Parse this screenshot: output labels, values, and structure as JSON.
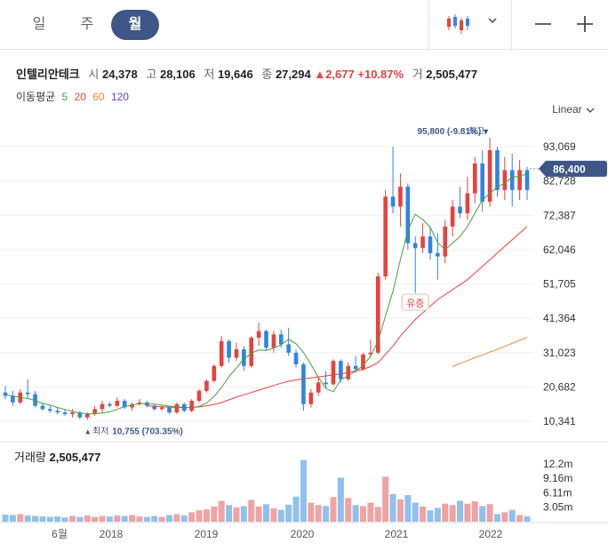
{
  "tabs": [
    {
      "label": "일",
      "active": false
    },
    {
      "label": "주",
      "active": false
    },
    {
      "label": "월",
      "active": true
    }
  ],
  "toolbar": {
    "candle_icon": "candlestick-icon",
    "dropdown_icon": "chevron-down-icon",
    "zoom_out_icon": "minus-icon",
    "zoom_in_icon": "plus-icon"
  },
  "stock": {
    "name": "인텔리안테크",
    "open_label": "시",
    "open": "24,378",
    "high_label": "고",
    "high": "28,106",
    "low_label": "저",
    "low": "19,646",
    "close_label": "종",
    "close": "27,294",
    "change": "2,677",
    "change_pct": "+10.87%",
    "volume_label": "거",
    "volume": "2,505,477"
  },
  "moving_avg": {
    "label": "이동평균",
    "periods": [
      "5",
      "20",
      "60",
      "120"
    ],
    "colors": [
      "#46a33b",
      "#e8413e",
      "#f0883a",
      "#6a45c9"
    ]
  },
  "scale": {
    "label": "Linear",
    "icon": "chevron-down-icon"
  },
  "colors": {
    "up": "#e8413e",
    "down": "#2f84e6",
    "accent": "#3e5687",
    "vol_up": "#f0a3a3",
    "vol_down": "#8fc1ef"
  },
  "chart_data": {
    "type": "candlestick",
    "price_axis": {
      "ticks": [
        "93,069",
        "82,728",
        "72,387",
        "62,046",
        "51,705",
        "41,364",
        "31,023",
        "20,682",
        "10,341"
      ],
      "range": [
        8000,
        100000
      ]
    },
    "current_price": "86,400",
    "high_marker": {
      "label": "최고",
      "value": "95,800 (-9.81%)",
      "raw": 95800
    },
    "low_marker": {
      "label": "최저",
      "value": "10,755 (703.35%)",
      "raw": 10755
    },
    "annotation": "유증",
    "x_labels": [
      "6월",
      "2018",
      "2019",
      "2020",
      "2021",
      "2022"
    ],
    "candles": [
      [
        19000,
        21000,
        17000,
        18000
      ],
      [
        18000,
        19500,
        15000,
        16000
      ],
      [
        16000,
        20000,
        15500,
        19000
      ],
      [
        19000,
        23000,
        17000,
        18500
      ],
      [
        18500,
        19500,
        14500,
        15000
      ],
      [
        15000,
        16000,
        13500,
        14000
      ],
      [
        14000,
        15000,
        13000,
        13500
      ],
      [
        13500,
        14500,
        12500,
        13000
      ],
      [
        13000,
        14000,
        12000,
        12500
      ],
      [
        12500,
        14000,
        11500,
        13000
      ],
      [
        13000,
        13500,
        11000,
        11500
      ],
      [
        11500,
        13000,
        10755,
        12500
      ],
      [
        12500,
        15000,
        12000,
        14000
      ],
      [
        14000,
        16500,
        13000,
        15500
      ],
      [
        15500,
        16000,
        14500,
        15000
      ],
      [
        15000,
        17500,
        14500,
        16500
      ],
      [
        16500,
        17000,
        14000,
        14500
      ],
      [
        14500,
        16000,
        13500,
        15500
      ],
      [
        15500,
        17000,
        15000,
        16000
      ],
      [
        16000,
        16500,
        14500,
        15000
      ],
      [
        15000,
        15500,
        13500,
        14000
      ],
      [
        14000,
        15000,
        13500,
        14500
      ],
      [
        14500,
        15000,
        12500,
        13000
      ],
      [
        13000,
        16000,
        12500,
        15500
      ],
      [
        15500,
        16000,
        13000,
        13500
      ],
      [
        13500,
        17000,
        13000,
        16500
      ],
      [
        16500,
        20000,
        16000,
        19500
      ],
      [
        19500,
        23000,
        19000,
        22500
      ],
      [
        22500,
        27500,
        22000,
        27000
      ],
      [
        27000,
        36000,
        26500,
        34500
      ],
      [
        34500,
        35000,
        28000,
        29500
      ],
      [
        29500,
        34000,
        28500,
        32000
      ],
      [
        32000,
        33000,
        25500,
        27000
      ],
      [
        27000,
        36000,
        26500,
        35500
      ],
      [
        35500,
        40000,
        33000,
        37500
      ],
      [
        37500,
        38000,
        31500,
        32500
      ],
      [
        32500,
        37500,
        31000,
        36500
      ],
      [
        36500,
        38000,
        32500,
        33500
      ],
      [
        33500,
        38500,
        30000,
        31000
      ],
      [
        31000,
        32000,
        26500,
        27500
      ],
      [
        27500,
        28000,
        13500,
        15500
      ],
      [
        15500,
        20000,
        14500,
        19000
      ],
      [
        19000,
        23500,
        18000,
        22000
      ],
      [
        22000,
        25500,
        20500,
        21500
      ],
      [
        21500,
        29000,
        21000,
        28500
      ],
      [
        28500,
        29000,
        22000,
        23000
      ],
      [
        23000,
        28000,
        22500,
        27000
      ],
      [
        27000,
        30000,
        25000,
        26000
      ],
      [
        26000,
        31000,
        25500,
        30500
      ],
      [
        30500,
        35000,
        29500,
        31000
      ],
      [
        31000,
        55000,
        30500,
        54000
      ],
      [
        54000,
        80000,
        53000,
        78000
      ],
      [
        78000,
        93000,
        73000,
        75000
      ],
      [
        75000,
        85000,
        69000,
        81000
      ],
      [
        81000,
        82000,
        62000,
        64000
      ],
      [
        64000,
        66000,
        49000,
        62500
      ],
      [
        62500,
        70000,
        61000,
        66000
      ],
      [
        66000,
        69000,
        59000,
        61000
      ],
      [
        61000,
        67000,
        53000,
        60000
      ],
      [
        60000,
        71000,
        58000,
        69000
      ],
      [
        69000,
        77000,
        66000,
        75000
      ],
      [
        75000,
        81000,
        71500,
        73000
      ],
      [
        73000,
        84000,
        71000,
        79000
      ],
      [
        79000,
        90000,
        76000,
        88000
      ],
      [
        88000,
        92000,
        73500,
        76500
      ],
      [
        76500,
        95800,
        75000,
        92000
      ],
      [
        92000,
        93000,
        78000,
        80000
      ],
      [
        80000,
        90000,
        77000,
        86000
      ],
      [
        86000,
        91000,
        75000,
        80000
      ],
      [
        80000,
        89000,
        77000,
        86000
      ],
      [
        86000,
        87000,
        77000,
        80000
      ]
    ],
    "volume_axis": {
      "ticks": [
        "12.2m",
        "9.16m",
        "6.11m",
        "3.05m"
      ],
      "max": 13500000
    },
    "volumes": [
      1.5,
      1.4,
      1.6,
      1.3,
      1.2,
      1.1,
      1.0,
      1.1,
      0.9,
      1.2,
      1.0,
      1.3,
      1.0,
      1.2,
      1.1,
      1.3,
      1.2,
      1.4,
      1.1,
      1.0,
      1.2,
      1.0,
      1.4,
      1.6,
      1.3,
      2.0,
      2.4,
      2.6,
      3.2,
      4.4,
      3.5,
      3.0,
      3.3,
      4.6,
      3.2,
      3.7,
      2.8,
      2.5,
      3.6,
      5.3,
      13.0,
      4.0,
      3.5,
      3.3,
      5.2,
      9.3,
      5.0,
      3.5,
      3.3,
      4.0,
      3.1,
      9.5,
      5.8,
      4.7,
      5.6,
      4.0,
      3.2,
      2.4,
      2.9,
      3.8,
      3.5,
      4.4,
      3.8,
      4.3,
      3.3,
      3.7,
      1.6,
      2.0,
      2.5,
      1.4,
      1.1
    ],
    "ma5": [
      18200,
      18000,
      17500,
      17200,
      16600,
      15700,
      15200,
      14500,
      13900,
      13300,
      12800,
      12600,
      12600,
      12800,
      13200,
      13900,
      14800,
      15200,
      15700,
      15600,
      15500,
      15200,
      14900,
      14700,
      14500,
      14400,
      14800,
      15800,
      17800,
      20500,
      23800,
      26400,
      29100,
      30800,
      31800,
      31700,
      32400,
      33400,
      35000,
      33700,
      31100,
      27500,
      23500,
      20300,
      19200,
      22900,
      24000,
      25500,
      27100,
      29900,
      34500,
      42100,
      49500,
      59000,
      67800,
      72700,
      71100,
      68800,
      64100,
      62000,
      64000,
      66000,
      69000,
      73000,
      77000,
      79000,
      81000,
      82000,
      84000,
      84000,
      85000
    ],
    "ma20": [
      null,
      null,
      null,
      null,
      null,
      null,
      null,
      null,
      null,
      null,
      null,
      null,
      null,
      null,
      null,
      null,
      null,
      null,
      null,
      15000,
      14800,
      14700,
      14600,
      14500,
      14400,
      14500,
      14700,
      15000,
      15400,
      16000,
      16800,
      17600,
      18300,
      19000,
      19700,
      20400,
      21100,
      21800,
      22400,
      22800,
      23100,
      23400,
      23700,
      24000,
      24300,
      24600,
      25000,
      25500,
      26000,
      26800,
      28000,
      30500,
      33000,
      36000,
      38500,
      41000,
      43000,
      45000,
      47000,
      48500,
      50000,
      51500,
      53000,
      55000,
      57000,
      59000,
      61000,
      63000,
      65000,
      67000,
      69000
    ],
    "ma60": [
      null,
      null,
      null,
      null,
      null,
      null,
      null,
      null,
      null,
      null,
      null,
      null,
      null,
      null,
      null,
      null,
      null,
      null,
      null,
      null,
      null,
      null,
      null,
      null,
      null,
      null,
      null,
      null,
      null,
      null,
      null,
      null,
      null,
      null,
      null,
      null,
      null,
      null,
      null,
      null,
      null,
      null,
      null,
      null,
      null,
      null,
      null,
      null,
      null,
      null,
      null,
      null,
      null,
      null,
      null,
      null,
      null,
      null,
      null,
      null,
      26800,
      27800,
      28600,
      29500,
      30300,
      31200,
      32000,
      32900,
      33800,
      34700,
      35600
    ],
    "ma120": []
  }
}
